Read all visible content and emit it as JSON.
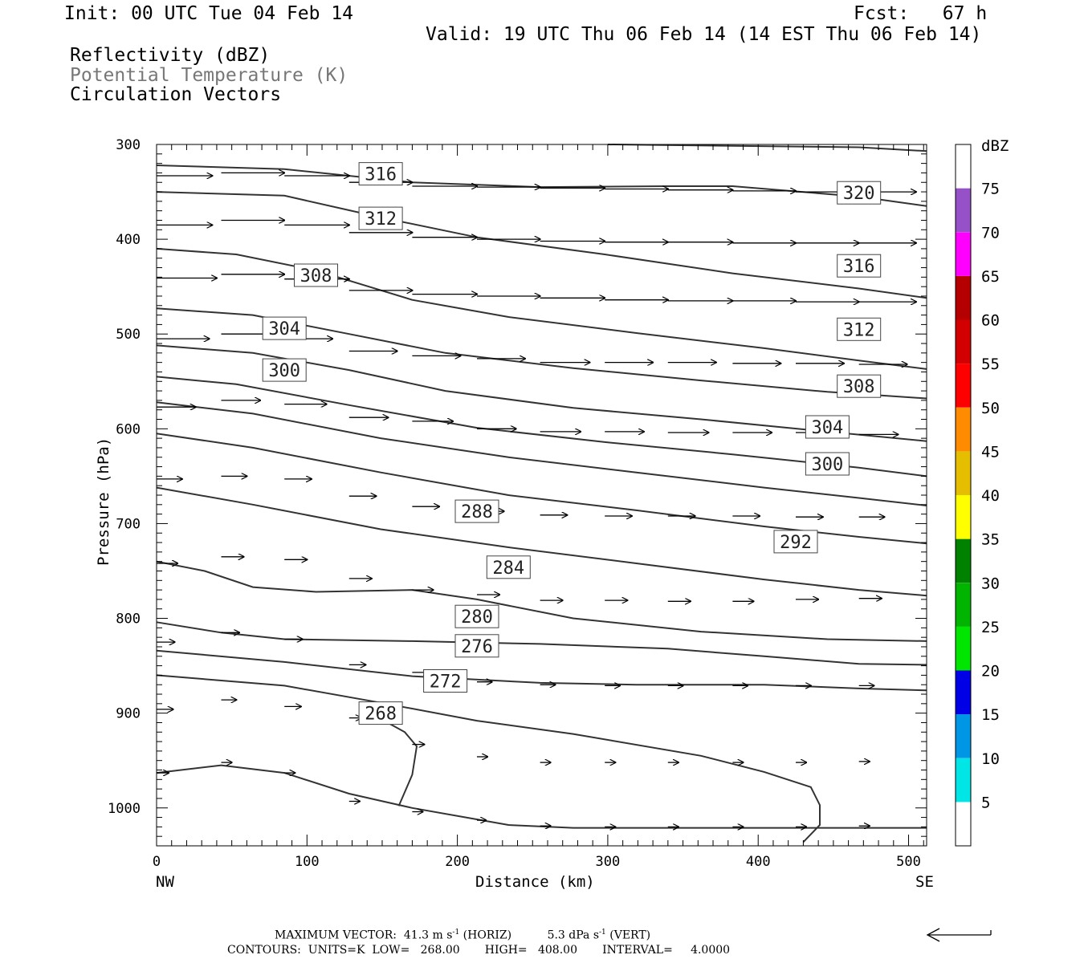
{
  "header": {
    "init": "Init: 00 UTC Tue 04 Feb 14",
    "fcst": "Fcst:   67 h",
    "valid": "Valid: 19 UTC Thu 06 Feb 14 (14 EST Thu 06 Feb 14)",
    "legend": [
      "Reflectivity (dBZ)",
      "Potential Temperature (K)",
      "Circulation Vectors"
    ]
  },
  "colors": {
    "contour": "#333333",
    "subtitle_gray": "#777777",
    "frame": "#000000"
  },
  "chart_data": {
    "type": "cross-section",
    "xlabel": "Distance (km)",
    "ylabel": "Pressure (hPa)",
    "xlim": [
      0,
      512
    ],
    "ylim": [
      1040,
      300
    ],
    "x_ticks": [
      0,
      100,
      200,
      300,
      400,
      500
    ],
    "y_ticks": [
      300,
      400,
      500,
      600,
      700,
      800,
      900,
      1000
    ],
    "x_end_labels": {
      "left": "NW",
      "right": "SE"
    },
    "contour_labels": [
      {
        "text": "316",
        "x": 149,
        "p": 331
      },
      {
        "text": "320",
        "x": 467,
        "p": 351
      },
      {
        "text": "312",
        "x": 149,
        "p": 378
      },
      {
        "text": "316",
        "x": 467,
        "p": 428
      },
      {
        "text": "308",
        "x": 106,
        "p": 438
      },
      {
        "text": "304",
        "x": 85,
        "p": 494
      },
      {
        "text": "312",
        "x": 467,
        "p": 495
      },
      {
        "text": "300",
        "x": 85,
        "p": 538
      },
      {
        "text": "308",
        "x": 467,
        "p": 555
      },
      {
        "text": "304",
        "x": 446,
        "p": 598
      },
      {
        "text": "300",
        "x": 446,
        "p": 637
      },
      {
        "text": "288",
        "x": 213,
        "p": 687
      },
      {
        "text": "292",
        "x": 425,
        "p": 719
      },
      {
        "text": "284",
        "x": 234,
        "p": 746
      },
      {
        "text": "280",
        "x": 213,
        "p": 798
      },
      {
        "text": "276",
        "x": 213,
        "p": 829
      },
      {
        "text": "272",
        "x": 192,
        "p": 866
      },
      {
        "text": "268",
        "x": 149,
        "p": 900
      }
    ],
    "theta_contours": [
      [
        [
          0,
          322
        ],
        [
          85,
          326
        ],
        [
          170,
          340
        ],
        [
          255,
          345
        ],
        [
          340,
          344
        ],
        [
          383,
          344
        ],
        [
          467,
          355
        ],
        [
          512,
          365
        ]
      ],
      [
        [
          0,
          350
        ],
        [
          85,
          354
        ],
        [
          149,
          377
        ],
        [
          213,
          398
        ],
        [
          298,
          416
        ],
        [
          383,
          436
        ],
        [
          467,
          452
        ],
        [
          512,
          462
        ]
      ],
      [
        [
          0,
          410
        ],
        [
          53,
          416
        ],
        [
          106,
          433
        ],
        [
          170,
          464
        ],
        [
          234,
          482
        ],
        [
          319,
          499
        ],
        [
          404,
          515
        ],
        [
          467,
          528
        ],
        [
          512,
          537
        ]
      ],
      [
        [
          0,
          473
        ],
        [
          64,
          480
        ],
        [
          128,
          500
        ],
        [
          192,
          520
        ],
        [
          277,
          536
        ],
        [
          362,
          549
        ],
        [
          446,
          561
        ],
        [
          512,
          568
        ]
      ],
      [
        [
          0,
          512
        ],
        [
          64,
          520
        ],
        [
          128,
          538
        ],
        [
          192,
          560
        ],
        [
          277,
          578
        ],
        [
          362,
          590
        ],
        [
          446,
          603
        ],
        [
          512,
          613
        ]
      ],
      [
        [
          0,
          545
        ],
        [
          53,
          553
        ],
        [
          128,
          575
        ],
        [
          213,
          599
        ],
        [
          298,
          614
        ],
        [
          383,
          627
        ],
        [
          467,
          641
        ],
        [
          512,
          650
        ]
      ],
      [
        [
          0,
          572
        ],
        [
          64,
          584
        ],
        [
          149,
          610
        ],
        [
          234,
          630
        ],
        [
          319,
          646
        ],
        [
          404,
          662
        ],
        [
          467,
          673
        ],
        [
          512,
          681
        ]
      ],
      [
        [
          0,
          605
        ],
        [
          64,
          620
        ],
        [
          149,
          646
        ],
        [
          234,
          670
        ],
        [
          319,
          686
        ],
        [
          404,
          703
        ],
        [
          467,
          714
        ],
        [
          512,
          721
        ]
      ],
      [
        [
          0,
          662
        ],
        [
          64,
          680
        ],
        [
          149,
          706
        ],
        [
          234,
          725
        ],
        [
          319,
          742
        ],
        [
          404,
          759
        ],
        [
          467,
          770
        ],
        [
          512,
          776
        ]
      ],
      [
        [
          0,
          740
        ],
        [
          32,
          750
        ],
        [
          64,
          767
        ],
        [
          106,
          772
        ],
        [
          170,
          770
        ],
        [
          213,
          780
        ],
        [
          277,
          800
        ],
        [
          362,
          814
        ],
        [
          446,
          822
        ],
        [
          512,
          824
        ]
      ],
      [
        [
          0,
          804
        ],
        [
          43,
          815
        ],
        [
          85,
          822
        ],
        [
          170,
          824
        ],
        [
          255,
          827
        ],
        [
          340,
          832
        ],
        [
          404,
          840
        ],
        [
          467,
          848
        ],
        [
          512,
          849
        ]
      ],
      [
        [
          0,
          834
        ],
        [
          85,
          846
        ],
        [
          170,
          861
        ],
        [
          255,
          868
        ],
        [
          319,
          870
        ],
        [
          404,
          870
        ],
        [
          467,
          874
        ],
        [
          512,
          876
        ]
      ],
      [
        [
          0,
          860
        ],
        [
          85,
          871
        ],
        [
          149,
          889
        ],
        [
          213,
          908
        ],
        [
          277,
          922
        ],
        [
          362,
          945
        ],
        [
          404,
          962
        ],
        [
          435,
          978
        ],
        [
          441,
          997
        ],
        [
          441,
          1018
        ],
        [
          430,
          1036
        ]
      ],
      [
        [
          0,
          963
        ],
        [
          43,
          955
        ],
        [
          85,
          963
        ],
        [
          128,
          985
        ],
        [
          170,
          1000
        ],
        [
          234,
          1018
        ],
        [
          277,
          1021
        ],
        [
          362,
          1021
        ],
        [
          441,
          1021
        ],
        [
          512,
          1021
        ]
      ],
      [
        [
          149,
          906
        ],
        [
          165,
          920
        ],
        [
          173,
          935
        ],
        [
          170,
          965
        ],
        [
          161,
          998
        ]
      ],
      [
        [
          300,
          300
        ],
        [
          467,
          303
        ],
        [
          512,
          307
        ]
      ]
    ],
    "circulation_vectors": [
      [
        0,
        333,
        37,
        333
      ],
      [
        43,
        330,
        85,
        330
      ],
      [
        85,
        333,
        128,
        333
      ],
      [
        128,
        340,
        170,
        340
      ],
      [
        170,
        344,
        213,
        344
      ],
      [
        213,
        345,
        255,
        345
      ],
      [
        255,
        346,
        298,
        346
      ],
      [
        298,
        347,
        340,
        347
      ],
      [
        340,
        348,
        383,
        348
      ],
      [
        383,
        349,
        425,
        349
      ],
      [
        425,
        350,
        467,
        350
      ],
      [
        467,
        350,
        505,
        350
      ],
      [
        0,
        385,
        37,
        385
      ],
      [
        43,
        380,
        85,
        380
      ],
      [
        85,
        385,
        128,
        385
      ],
      [
        128,
        393,
        170,
        393
      ],
      [
        170,
        398,
        213,
        398
      ],
      [
        213,
        400,
        255,
        400
      ],
      [
        255,
        402,
        298,
        402
      ],
      [
        298,
        403,
        340,
        403
      ],
      [
        340,
        403,
        383,
        403
      ],
      [
        383,
        404,
        425,
        404
      ],
      [
        425,
        404,
        467,
        404
      ],
      [
        467,
        404,
        505,
        404
      ],
      [
        0,
        441,
        40,
        441
      ],
      [
        43,
        437,
        85,
        437
      ],
      [
        85,
        442,
        128,
        442
      ],
      [
        128,
        454,
        170,
        454
      ],
      [
        170,
        458,
        213,
        458
      ],
      [
        213,
        460,
        255,
        460
      ],
      [
        255,
        462,
        298,
        462
      ],
      [
        298,
        464,
        340,
        464
      ],
      [
        340,
        465,
        383,
        465
      ],
      [
        383,
        465,
        425,
        465
      ],
      [
        425,
        466,
        467,
        466
      ],
      [
        467,
        466,
        505,
        466
      ],
      [
        0,
        505,
        35,
        505
      ],
      [
        43,
        500,
        85,
        500
      ],
      [
        85,
        505,
        117,
        505
      ],
      [
        128,
        518,
        160,
        518
      ],
      [
        170,
        523,
        202,
        523
      ],
      [
        213,
        526,
        245,
        526
      ],
      [
        255,
        530,
        288,
        530
      ],
      [
        298,
        530,
        330,
        530
      ],
      [
        340,
        530,
        372,
        530
      ],
      [
        383,
        531,
        415,
        531
      ],
      [
        425,
        531,
        457,
        531
      ],
      [
        467,
        532,
        499,
        532
      ],
      [
        0,
        577,
        26,
        577
      ],
      [
        43,
        570,
        69,
        570
      ],
      [
        85,
        574,
        113,
        574
      ],
      [
        128,
        588,
        154,
        588
      ],
      [
        170,
        592,
        197,
        592
      ],
      [
        213,
        600,
        239,
        600
      ],
      [
        255,
        603,
        282,
        603
      ],
      [
        298,
        603,
        324,
        603
      ],
      [
        340,
        604,
        367,
        604
      ],
      [
        383,
        604,
        409,
        604
      ],
      [
        425,
        604,
        452,
        604
      ],
      [
        467,
        606,
        493,
        606
      ],
      [
        0,
        653,
        17,
        653
      ],
      [
        43,
        650,
        60,
        650
      ],
      [
        85,
        653,
        103,
        653
      ],
      [
        128,
        671,
        146,
        671
      ],
      [
        170,
        682,
        188,
        682
      ],
      [
        213,
        687,
        231,
        687
      ],
      [
        255,
        691,
        273,
        691
      ],
      [
        298,
        692,
        316,
        692
      ],
      [
        340,
        692,
        358,
        692
      ],
      [
        383,
        692,
        401,
        692
      ],
      [
        425,
        693,
        443,
        693
      ],
      [
        467,
        693,
        484,
        693
      ],
      [
        0,
        742,
        14,
        742
      ],
      [
        43,
        735,
        58,
        735
      ],
      [
        85,
        738,
        100,
        738
      ],
      [
        128,
        758,
        143,
        758
      ],
      [
        170,
        770,
        184,
        770
      ],
      [
        213,
        775,
        228,
        775
      ],
      [
        255,
        781,
        270,
        781
      ],
      [
        298,
        781,
        313,
        781
      ],
      [
        340,
        782,
        355,
        782
      ],
      [
        383,
        782,
        397,
        782
      ],
      [
        425,
        780,
        440,
        780
      ],
      [
        467,
        779,
        482,
        779
      ],
      [
        0,
        825,
        12,
        825
      ],
      [
        43,
        815,
        55,
        815
      ],
      [
        85,
        822,
        97,
        822
      ],
      [
        128,
        849,
        139,
        849
      ],
      [
        170,
        857,
        181,
        857
      ],
      [
        213,
        867,
        223,
        867
      ],
      [
        255,
        870,
        265,
        870
      ],
      [
        298,
        871,
        308,
        871
      ],
      [
        340,
        871,
        350,
        871
      ],
      [
        383,
        871,
        393,
        871
      ],
      [
        425,
        871,
        435,
        871
      ],
      [
        467,
        871,
        477,
        871
      ],
      [
        0,
        896,
        11,
        896
      ],
      [
        43,
        886,
        53,
        886
      ],
      [
        85,
        893,
        96,
        893
      ],
      [
        128,
        905,
        136,
        905
      ],
      [
        170,
        933,
        178,
        933
      ],
      [
        213,
        946,
        220,
        946
      ],
      [
        255,
        952,
        262,
        952
      ],
      [
        298,
        952,
        305,
        952
      ],
      [
        340,
        952,
        347,
        952
      ],
      [
        383,
        952,
        390,
        952
      ],
      [
        425,
        952,
        432,
        952
      ],
      [
        467,
        951,
        474,
        951
      ],
      [
        0,
        963,
        8,
        963
      ],
      [
        43,
        952,
        50,
        952
      ],
      [
        85,
        963,
        92,
        963
      ],
      [
        128,
        993,
        135,
        993
      ],
      [
        170,
        1004,
        177,
        1004
      ],
      [
        213,
        1013,
        219,
        1013
      ],
      [
        255,
        1019,
        262,
        1019
      ],
      [
        298,
        1020,
        305,
        1020
      ],
      [
        340,
        1020,
        347,
        1020
      ],
      [
        383,
        1020,
        390,
        1020
      ],
      [
        425,
        1020,
        432,
        1020
      ],
      [
        467,
        1019,
        474,
        1019
      ]
    ],
    "colorbar": {
      "label": "dBZ",
      "bounds": [
        0,
        5,
        10,
        15,
        20,
        25,
        30,
        35,
        40,
        45,
        50,
        55,
        60,
        65,
        70,
        75,
        80
      ],
      "tick_labels": [
        "5",
        "10",
        "15",
        "20",
        "25",
        "30",
        "35",
        "40",
        "45",
        "50",
        "55",
        "60",
        "65",
        "70",
        "75"
      ],
      "colors": [
        "#ffffff",
        "#00e6e6",
        "#0096e6",
        "#0000e6",
        "#00e600",
        "#00b400",
        "#008200",
        "#ffff00",
        "#e6be00",
        "#ff8c00",
        "#ff0000",
        "#d20000",
        "#b40000",
        "#ff00ff",
        "#9650c8",
        "#ffffff"
      ]
    }
  },
  "footer": {
    "max_vector_prefix": "MAXIMUM VECTOR:  41.3 m s",
    "max_vector_exp1": "-1",
    "max_vector_mid": " (HORIZ)          5.3 dPa s",
    "max_vector_exp2": "-1",
    "max_vector_suffix": " (VERT)",
    "contours": "CONTOURS:  UNITS=K  LOW=   268.00       HIGH=   408.00       INTERVAL=     4.0000"
  }
}
